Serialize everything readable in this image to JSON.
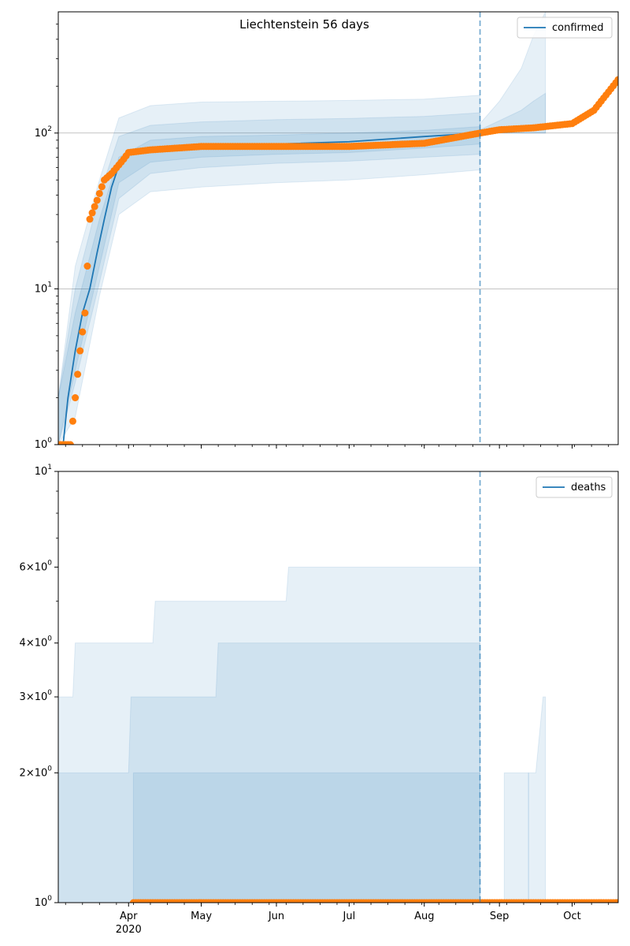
{
  "chart_data": [
    {
      "type": "line",
      "title": "Liechtenstein 56 days",
      "yscale": "log",
      "ylim": [
        1,
        600
      ],
      "yticks": [
        1,
        10,
        100
      ],
      "ytick_labels": [
        "10^0",
        "10^1",
        "10^2"
      ],
      "xlim": [
        "2020-03-03",
        "2020-10-20"
      ],
      "xtick_labels": [
        {
          "date": "2020-04-01",
          "label": "Apr",
          "sub": "2020"
        },
        {
          "date": "2020-05-01",
          "label": "May"
        },
        {
          "date": "2020-06-01",
          "label": "Jun"
        },
        {
          "date": "2020-07-01",
          "label": "Jul"
        },
        {
          "date": "2020-08-01",
          "label": "Aug"
        },
        {
          "date": "2020-09-01",
          "label": "Sep"
        },
        {
          "date": "2020-10-01",
          "label": "Oct"
        }
      ],
      "grid": "horizontal major",
      "legend": {
        "placement": "top-right",
        "entries": [
          "confirmed"
        ]
      },
      "vline_date": "2020-08-24",
      "colors": {
        "line": "#1f77b4",
        "points": "#ff7f0e",
        "band": "#1f77b4"
      },
      "series": [
        {
          "name": "confirmed",
          "kind": "line",
          "x": [
            "2020-03-05",
            "2020-03-07",
            "2020-03-10",
            "2020-03-13",
            "2020-03-16",
            "2020-03-19",
            "2020-03-22",
            "2020-03-25",
            "2020-03-28",
            "2020-04-01",
            "2020-04-10",
            "2020-05-01",
            "2020-06-01",
            "2020-07-01",
            "2020-08-01",
            "2020-08-24"
          ],
          "values": [
            1,
            2,
            4,
            7,
            10,
            17,
            28,
            45,
            62,
            72,
            80,
            83,
            85,
            88,
            95,
            100
          ]
        },
        {
          "name": "observed",
          "kind": "scatter",
          "x": [
            "2020-03-03",
            "2020-03-08",
            "2020-03-12",
            "2020-03-14",
            "2020-03-16",
            "2020-03-19",
            "2020-03-22",
            "2020-03-25",
            "2020-03-30",
            "2020-04-01",
            "2020-04-10",
            "2020-05-01",
            "2020-06-01",
            "2020-07-01",
            "2020-08-01",
            "2020-08-24",
            "2020-09-01",
            "2020-09-15",
            "2020-10-01",
            "2020-10-10",
            "2020-10-20"
          ],
          "values": [
            1,
            1,
            4,
            7,
            28,
            37,
            50,
            55,
            68,
            75,
            78,
            82,
            82,
            82,
            86,
            100,
            105,
            108,
            115,
            140,
            220
          ]
        }
      ],
      "bands": [
        {
          "x": [
            "2020-03-03",
            "2020-03-10",
            "2020-03-20",
            "2020-03-28",
            "2020-04-10",
            "2020-05-01",
            "2020-06-01",
            "2020-07-01",
            "2020-08-01",
            "2020-08-24"
          ],
          "low": [
            1,
            1.5,
            9,
            30,
            42,
            45,
            48,
            50,
            54,
            58
          ],
          "high": [
            2,
            14,
            50,
            125,
            150,
            158,
            160,
            162,
            165,
            175
          ]
        },
        {
          "x": [
            "2020-03-03",
            "2020-03-10",
            "2020-03-20",
            "2020-03-28",
            "2020-04-10",
            "2020-05-01",
            "2020-06-01",
            "2020-07-01",
            "2020-08-01",
            "2020-08-24"
          ],
          "low": [
            1,
            2.5,
            11,
            38,
            55,
            60,
            64,
            66,
            70,
            73
          ],
          "high": [
            2,
            10,
            40,
            95,
            112,
            118,
            122,
            124,
            128,
            135
          ]
        },
        {
          "x": [
            "2020-03-03",
            "2020-03-10",
            "2020-03-20",
            "2020-03-28",
            "2020-04-10",
            "2020-05-01",
            "2020-06-01",
            "2020-07-01",
            "2020-08-01",
            "2020-08-24"
          ],
          "low": [
            1,
            3,
            14,
            48,
            65,
            70,
            73,
            75,
            80,
            85
          ],
          "high": [
            2,
            7,
            28,
            70,
            90,
            95,
            97,
            100,
            104,
            110
          ]
        },
        {
          "x": [
            "2020-08-24",
            "2020-09-01",
            "2020-09-10",
            "2020-09-15",
            "2020-09-20"
          ],
          "low": [
            100,
            100,
            100,
            100,
            100
          ],
          "high": [
            115,
            160,
            260,
            420,
            600
          ]
        },
        {
          "x": [
            "2020-08-24",
            "2020-09-01",
            "2020-09-10",
            "2020-09-15",
            "2020-09-20"
          ],
          "low": [
            100,
            100,
            100,
            100,
            100
          ],
          "high": [
            105,
            120,
            140,
            160,
            180
          ]
        }
      ]
    },
    {
      "type": "line",
      "title": "",
      "yscale": "log",
      "ylim": [
        1,
        10
      ],
      "yticks": [
        1,
        2,
        3,
        4,
        6,
        10
      ],
      "ytick_labels": [
        "10^0",
        "2×10^0",
        "3×10^0",
        "4×10^0",
        "6×10^0",
        "10^1"
      ],
      "xlim": [
        "2020-03-03",
        "2020-10-20"
      ],
      "xtick_labels": [
        {
          "date": "2020-04-01",
          "label": "Apr",
          "sub": "2020"
        },
        {
          "date": "2020-05-01",
          "label": "May"
        },
        {
          "date": "2020-06-01",
          "label": "Jun"
        },
        {
          "date": "2020-07-01",
          "label": "Jul"
        },
        {
          "date": "2020-08-01",
          "label": "Aug"
        },
        {
          "date": "2020-09-01",
          "label": "Sep"
        },
        {
          "date": "2020-10-01",
          "label": "Oct"
        }
      ],
      "grid": "none",
      "legend": {
        "placement": "top-right",
        "entries": [
          "deaths"
        ]
      },
      "vline_date": "2020-08-24",
      "colors": {
        "line": "#1f77b4",
        "points": "#ff7f0e",
        "band": "#1f77b4"
      },
      "series": [
        {
          "name": "deaths",
          "kind": "line",
          "x": [],
          "values": []
        },
        {
          "name": "observed",
          "kind": "scatter",
          "x": [
            "2020-04-03",
            "2020-05-01",
            "2020-06-01",
            "2020-07-01",
            "2020-08-01",
            "2020-08-24",
            "2020-09-01",
            "2020-10-01",
            "2020-10-20"
          ],
          "values": [
            1,
            1,
            1,
            1,
            1,
            1,
            1,
            1,
            1
          ]
        }
      ],
      "bands": [
        {
          "x": [
            "2020-03-03",
            "2020-03-09",
            "2020-03-10",
            "2020-04-11",
            "2020-04-12",
            "2020-05-17",
            "2020-06-05",
            "2020-06-06",
            "2020-08-24"
          ],
          "low": [
            1,
            1,
            1,
            1,
            1,
            1,
            1,
            1,
            1
          ],
          "high": [
            3,
            3,
            4,
            4,
            5,
            5,
            5,
            6,
            6
          ]
        },
        {
          "x": [
            "2020-03-03",
            "2020-04-01",
            "2020-04-02",
            "2020-05-07",
            "2020-05-08",
            "2020-08-24"
          ],
          "low": [
            1,
            1,
            1,
            1,
            1,
            1
          ],
          "high": [
            2,
            2,
            3,
            3,
            4,
            4
          ]
        },
        {
          "x": [
            "2020-04-03",
            "2020-08-24"
          ],
          "low": [
            1,
            1
          ],
          "high": [
            2,
            2
          ]
        },
        {
          "x": [
            "2020-09-03",
            "2020-09-13"
          ],
          "low": [
            1,
            1
          ],
          "high": [
            2,
            2
          ]
        },
        {
          "x": [
            "2020-09-13",
            "2020-09-16",
            "2020-09-19",
            "2020-09-20"
          ],
          "low": [
            1,
            1,
            1,
            1
          ],
          "high": [
            2,
            2,
            3,
            3
          ]
        }
      ]
    }
  ]
}
